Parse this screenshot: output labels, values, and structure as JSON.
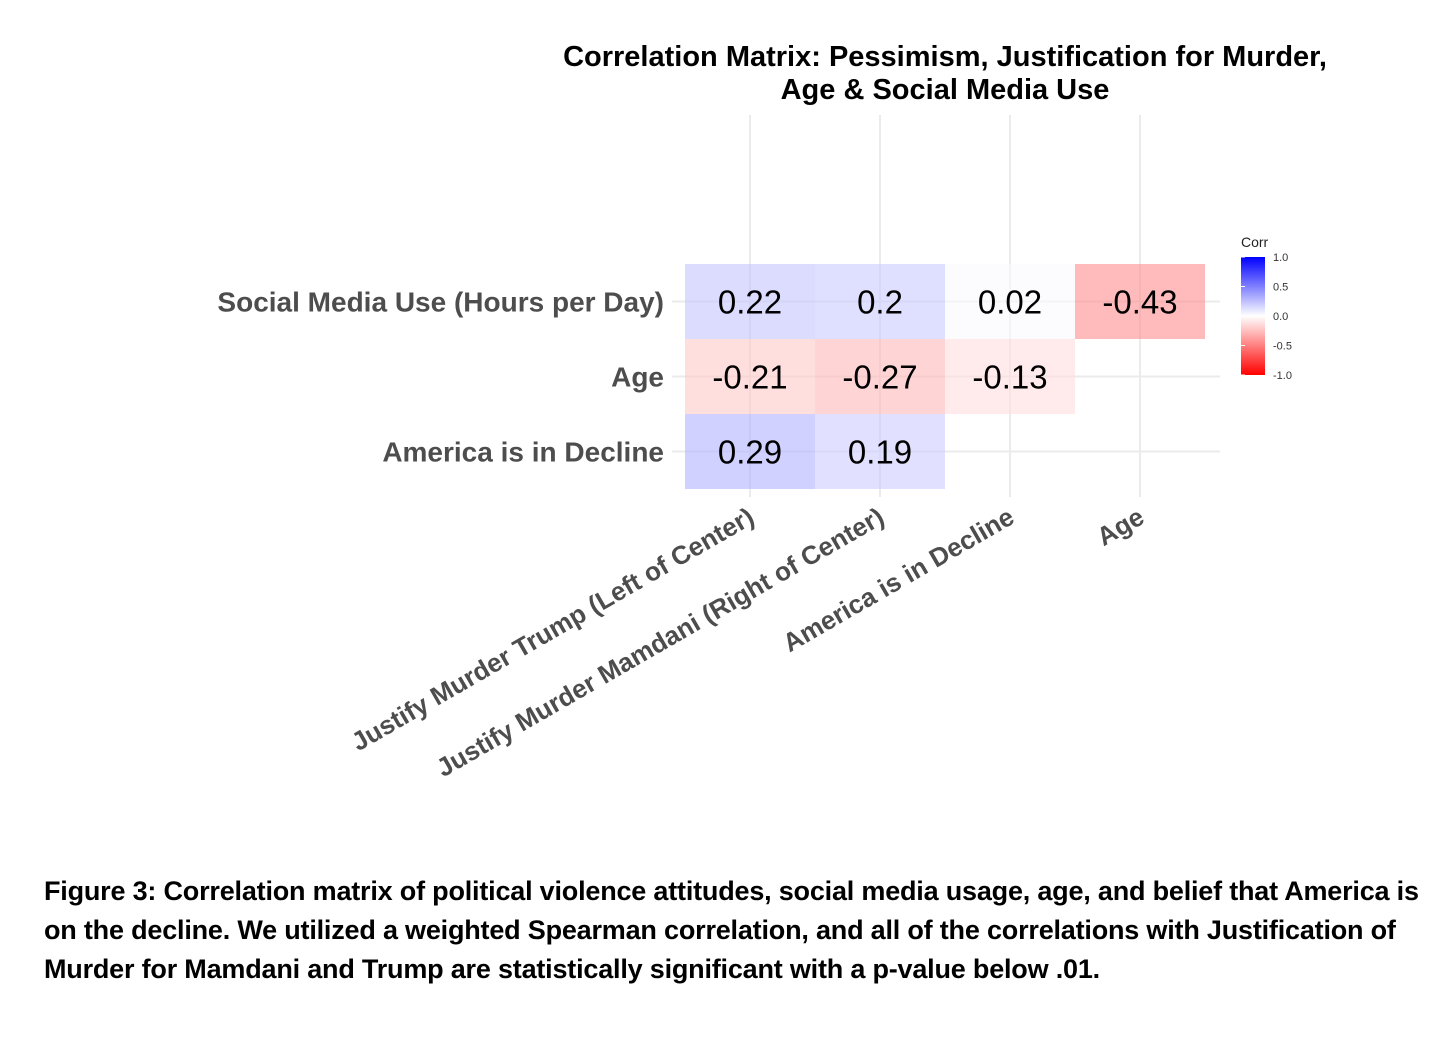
{
  "chart_data": {
    "type": "heatmap",
    "title_lines": [
      "Correlation Matrix: Pessimism, Justification for Murder,",
      "Age & Social Media Use"
    ],
    "x_labels": [
      "Justify Murder Trump (Left of Center)",
      "Justify Murder Mamdani (Right of Center)",
      "America is in Decline",
      "Age"
    ],
    "y_labels": [
      "Social Media Use (Hours per Day)",
      "Age",
      "America is in Decline"
    ],
    "cells": [
      {
        "row": 0,
        "col": 0,
        "value": 0.22
      },
      {
        "row": 0,
        "col": 1,
        "value": 0.2
      },
      {
        "row": 0,
        "col": 2,
        "value": 0.02
      },
      {
        "row": 0,
        "col": 3,
        "value": -0.43
      },
      {
        "row": 1,
        "col": 0,
        "value": -0.21
      },
      {
        "row": 1,
        "col": 1,
        "value": -0.27
      },
      {
        "row": 1,
        "col": 2,
        "value": -0.13
      },
      {
        "row": 2,
        "col": 0,
        "value": 0.29
      },
      {
        "row": 2,
        "col": 1,
        "value": 0.19
      }
    ],
    "legend": {
      "title": "Corr",
      "ticks": [
        "1.0",
        "0.5",
        "0.0",
        "-0.5",
        "-1.0"
      ],
      "range": [
        -1.0,
        1.0
      ],
      "colors": {
        "high": "#0000ff",
        "mid": "#ffffff",
        "low": "#ff0000"
      }
    }
  },
  "caption": "Figure 3: Correlation matrix of political violence attitudes, social media usage, age, and belief that America is on the decline. We utilized a weighted Spearman correlation, and all of the correlations with Justification of Murder for Mamdani and Trump are statistically significant with a p-value below .01."
}
